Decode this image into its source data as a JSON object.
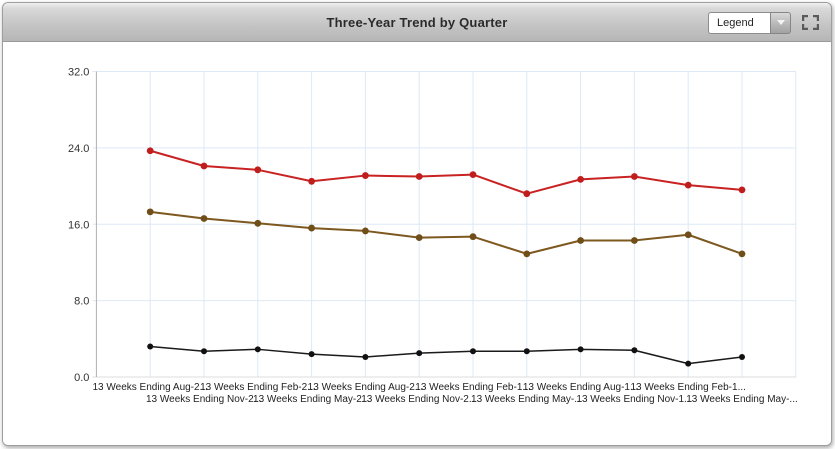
{
  "header": {
    "title": "Three-Year Trend by Quarter",
    "legend_dropdown": {
      "value": "Legend"
    }
  },
  "colors": {
    "grid_line": "#dde9f6",
    "y_axis_line": "#b0b0b0",
    "x_axis_line": "#dcdcdc",
    "tick_label": "#333333",
    "category_label": "#222222",
    "header_text": "#2b2b2b"
  },
  "chart_data": {
    "type": "line",
    "title": "Three-Year Trend by Quarter",
    "categories": [
      "13 Weeks Ending Aug-2...",
      "13 Weeks Ending Nov-2...",
      "13 Weeks Ending Feb-2...",
      "13 Weeks Ending May-2...",
      "13 Weeks Ending Aug-2...",
      "13 Weeks Ending Nov-2...",
      "13 Weeks Ending Feb-1...",
      "13 Weeks Ending May-...",
      "13 Weeks Ending Aug-1...",
      "13 Weeks Ending Nov-1...",
      "13 Weeks Ending Feb-1...",
      "13 Weeks Ending May-..."
    ],
    "series": [
      {
        "color": "#c92222",
        "marker_color": "#c01d1d",
        "line_width": 2,
        "values": [
          23.7,
          22.1,
          21.7,
          20.5,
          21.1,
          21.0,
          21.2,
          19.2,
          20.7,
          21.0,
          20.1,
          19.6
        ]
      },
      {
        "color": "#7d581f",
        "marker_color": "#6f4e1a",
        "line_width": 2,
        "values": [
          17.3,
          16.6,
          16.1,
          15.6,
          15.3,
          14.6,
          14.7,
          12.9,
          14.3,
          14.3,
          14.9,
          12.9
        ]
      },
      {
        "color": "#1a1a1a",
        "marker_color": "#111111",
        "line_width": 1.5,
        "values": [
          3.2,
          2.7,
          2.9,
          2.4,
          2.1,
          2.5,
          2.7,
          2.7,
          2.9,
          2.8,
          1.4,
          2.1
        ]
      }
    ],
    "ylim": [
      0,
      32
    ],
    "yticks": [
      0,
      8,
      16,
      24,
      32
    ],
    "ytick_labels": [
      "0.0",
      "8.0",
      "16.0",
      "24.0",
      "32.0"
    ],
    "xlabel": "",
    "ylabel": "",
    "grid": true,
    "x_label_stagger": true,
    "legend_position": "header-dropdown-collapsed"
  }
}
